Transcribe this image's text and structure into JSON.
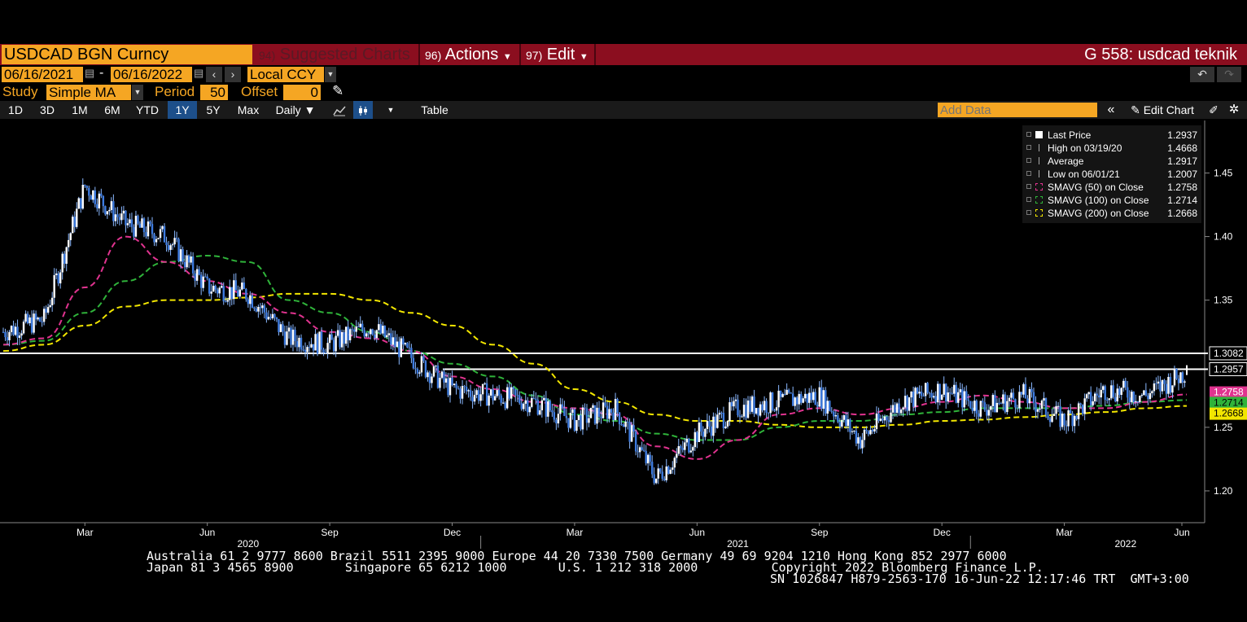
{
  "header": {
    "ticker": "USDCAD BGN Curncy",
    "menu": [
      {
        "num": "94)",
        "label": "Suggested Charts"
      },
      {
        "num": "96)",
        "label": "Actions"
      },
      {
        "num": "97)",
        "label": "Edit"
      }
    ],
    "title": "G 558: usdcad teknik"
  },
  "range": {
    "start": "06/16/2021",
    "dash": "-",
    "end": "06/16/2022",
    "currency": "Local CCY"
  },
  "study": {
    "label": "Study",
    "value": "Simple MA",
    "period_label": "Period",
    "period": "50",
    "offset_label": "Offset",
    "offset": "0"
  },
  "toolbar": {
    "periods": [
      "1D",
      "3D",
      "1M",
      "6M",
      "YTD",
      "1Y",
      "5Y",
      "Max"
    ],
    "selected": "1Y",
    "frequency": "Daily ▼",
    "table": "Table",
    "add_data_placeholder": "Add Data",
    "edit_chart": "Edit Chart"
  },
  "legend": [
    {
      "name": "Last Price",
      "value": "1.2937",
      "icon": "white-box",
      "color": "#ffffff"
    },
    {
      "name": "High on 03/19/20",
      "value": "1.4668",
      "icon": "high-marker",
      "color": "#aaaaaa"
    },
    {
      "name": "Average",
      "value": "1.2917",
      "icon": "average-marker",
      "color": "#aaaaaa"
    },
    {
      "name": "Low on 06/01/21",
      "value": "1.2007",
      "icon": "low-marker",
      "color": "#aaaaaa"
    },
    {
      "name": "SMAVG (50)  on Close",
      "value": "1.2758",
      "icon": "dashed-box",
      "color": "#e0338f"
    },
    {
      "name": "SMAVG (100)  on Close",
      "value": "1.2714",
      "icon": "dashed-box",
      "color": "#2fb33a"
    },
    {
      "name": "SMAVG (200)  on Close",
      "value": "1.2668",
      "icon": "dashed-box",
      "color": "#f2e600"
    }
  ],
  "footer": {
    "line1": "Australia 61 2 9777 8600 Brazil 5511 2395 9000 Europe 44 20 7330 7500 Germany 49 69 9204 1210 Hong Kong 852 2977 6000",
    "line2": "Japan 81 3 4565 8900       Singapore 65 6212 1000       U.S. 1 212 318 2000          Copyright 2022 Bloomberg Finance L.P.",
    "line3": "SN 1026847 H879-2563-170 16-Jun-22 12:17:46 TRT  GMT+3:00"
  },
  "chart_data": {
    "type": "line",
    "subtype": "candlestick-style price with moving averages",
    "ylim": [
      1.175,
      1.49
    ],
    "y_ticks": [
      "1.45",
      "1.40",
      "1.35",
      "1.25",
      "1.20"
    ],
    "x_month_labels": [
      "Mar",
      "Jun",
      "Sep",
      "Dec",
      "Mar",
      "Jun",
      "Sep",
      "Dec",
      "Mar",
      "Jun"
    ],
    "x_year_labels": [
      "2020",
      "2021",
      "2022"
    ],
    "grid": false,
    "legend_position": "top-right",
    "x": [
      "2020-01",
      "2020-02",
      "2020-03",
      "2020-04",
      "2020-05",
      "2020-06",
      "2020-07",
      "2020-08",
      "2020-09",
      "2020-10",
      "2020-11",
      "2020-12",
      "2021-01",
      "2021-02",
      "2021-03",
      "2021-04",
      "2021-05",
      "2021-06",
      "2021-07",
      "2021-08",
      "2021-09",
      "2021-10",
      "2021-11",
      "2021-12",
      "2022-01",
      "2022-02",
      "2022-03",
      "2022-04",
      "2022-05",
      "2022-06"
    ],
    "series": [
      {
        "name": "Last Price",
        "color": "#ffffff",
        "values": [
          1.325,
          1.335,
          1.44,
          1.41,
          1.4,
          1.36,
          1.355,
          1.32,
          1.315,
          1.33,
          1.305,
          1.28,
          1.275,
          1.27,
          1.255,
          1.265,
          1.21,
          1.245,
          1.265,
          1.27,
          1.275,
          1.24,
          1.27,
          1.28,
          1.265,
          1.275,
          1.255,
          1.28,
          1.275,
          1.2937
        ]
      },
      {
        "name": "SMAVG (50)  on Close",
        "color": "#e0338f",
        "values": [
          1.315,
          1.32,
          1.36,
          1.4,
          1.38,
          1.365,
          1.355,
          1.34,
          1.325,
          1.32,
          1.31,
          1.29,
          1.28,
          1.27,
          1.265,
          1.26,
          1.235,
          1.225,
          1.24,
          1.26,
          1.265,
          1.26,
          1.265,
          1.27,
          1.275,
          1.27,
          1.265,
          1.265,
          1.27,
          1.2758
        ]
      },
      {
        "name": "SMAVG (100)  on Close",
        "color": "#2fb33a",
        "values": [
          1.315,
          1.318,
          1.34,
          1.365,
          1.38,
          1.385,
          1.38,
          1.35,
          1.34,
          1.325,
          1.31,
          1.3,
          1.29,
          1.275,
          1.26,
          1.255,
          1.245,
          1.24,
          1.24,
          1.25,
          1.255,
          1.255,
          1.26,
          1.262,
          1.265,
          1.265,
          1.265,
          1.267,
          1.27,
          1.2714
        ]
      },
      {
        "name": "SMAVG (200)  on Close",
        "color": "#f2e600",
        "values": [
          1.31,
          1.315,
          1.33,
          1.345,
          1.35,
          1.35,
          1.352,
          1.355,
          1.355,
          1.35,
          1.34,
          1.33,
          1.315,
          1.3,
          1.28,
          1.27,
          1.26,
          1.255,
          1.255,
          1.252,
          1.25,
          1.25,
          1.252,
          1.255,
          1.256,
          1.258,
          1.26,
          1.262,
          1.265,
          1.2668
        ]
      }
    ],
    "hlines": [
      {
        "value": 1.3082,
        "label": "1.3082"
      },
      {
        "value": 1.2957,
        "label": "1.2957"
      }
    ],
    "right_badges": [
      {
        "label": "1.2758",
        "color": "#e0338f"
      },
      {
        "label": "1.2714",
        "color": "#2fb33a"
      },
      {
        "label": "1.2668",
        "color": "#f2e600"
      }
    ]
  }
}
